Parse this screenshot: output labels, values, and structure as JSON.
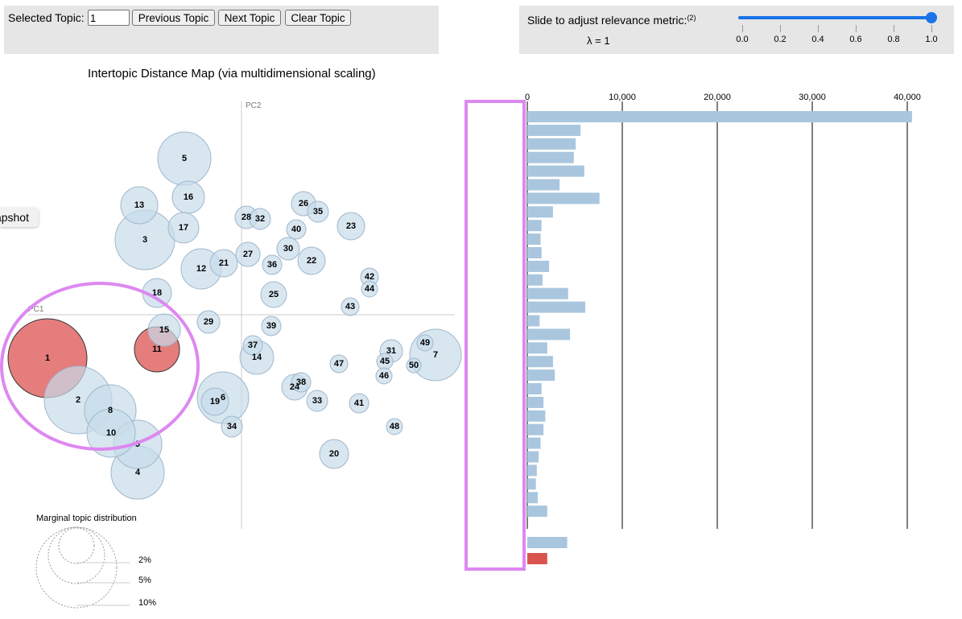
{
  "topic_controls": {
    "selected_label": "Selected Topic:",
    "selected_value": "1",
    "previous_label": "Previous Topic",
    "next_label": "Next Topic",
    "clear_label": "Clear Topic"
  },
  "relevance": {
    "label": "Slide to adjust relevance metric:",
    "footnote": "(2)",
    "lambda_text": "λ = 1",
    "value": 1.0,
    "ticks": [
      "0.0",
      "0.2",
      "0.4",
      "0.6",
      "0.8",
      "1.0"
    ]
  },
  "snapshot_label": "Snapshot",
  "map": {
    "title": "Intertopic Distance Map (via multidimensional scaling)",
    "pc1_label": "PC1",
    "pc2_label": "PC2",
    "selected_color": "#e06666",
    "default_color": "#c7dcea",
    "topics": [
      "1",
      "2",
      "3",
      "4",
      "5",
      "6",
      "7",
      "8",
      "9",
      "10",
      "11",
      "12",
      "13",
      "14",
      "15",
      "16",
      "17",
      "18",
      "19",
      "20",
      "21",
      "22",
      "23",
      "24",
      "25",
      "26",
      "27",
      "28",
      "29",
      "30",
      "31",
      "32",
      "33",
      "34",
      "35",
      "36",
      "37",
      "38",
      "39",
      "40",
      "41",
      "42",
      "43",
      "44",
      "45",
      "46",
      "47",
      "48",
      "49",
      "50"
    ]
  },
  "marginal": {
    "title": "Marginal topic distribution",
    "labels": [
      "2%",
      "5%",
      "10%"
    ]
  },
  "bar_chart": {
    "axis_ticks": [
      "0",
      "10,000",
      "20,000",
      "30,000",
      "40,000"
    ],
    "bar_color": "#a9c6de",
    "highlight_color": "#d9534f",
    "bars": [
      40500,
      5600,
      5100,
      4900,
      6000,
      3400,
      7600,
      2700,
      1500,
      1400,
      1500,
      2300,
      1600,
      4300,
      6100,
      1300,
      4500,
      2100,
      2700,
      2900,
      1500,
      1700,
      1900,
      1700,
      1400,
      1200,
      1000,
      900,
      1100,
      2100
    ],
    "extra_bar": 4200,
    "highlight_bar": 2100
  },
  "annotation_color": "#dd88f0"
}
